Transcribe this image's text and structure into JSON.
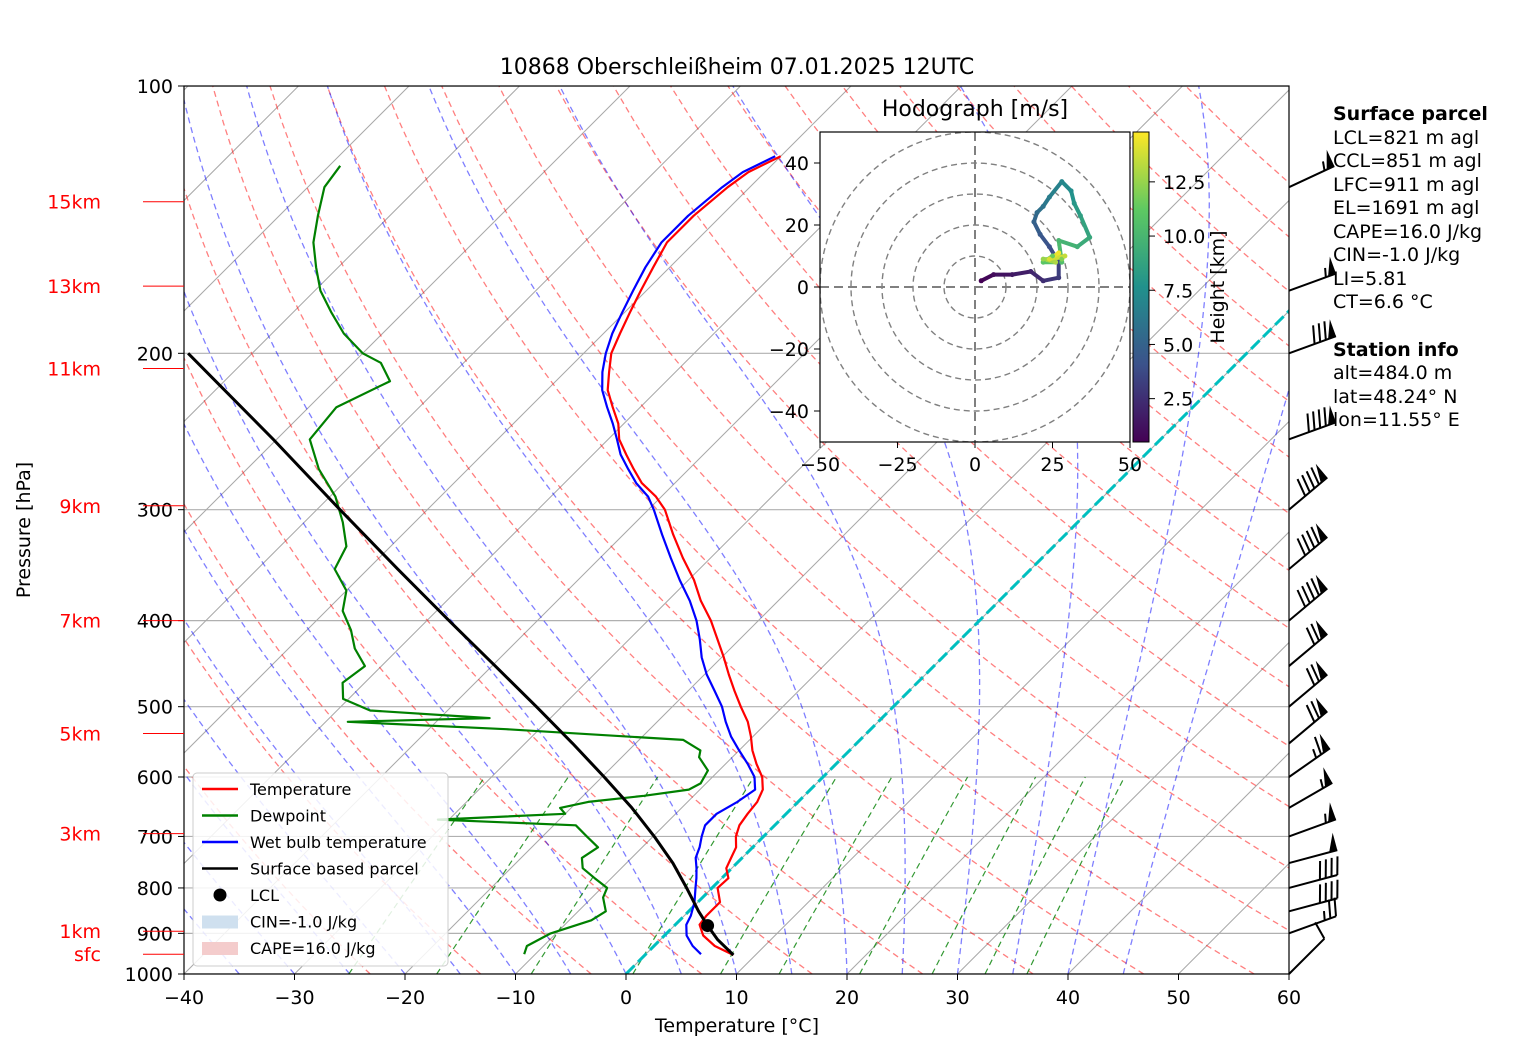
{
  "chart_data": {
    "type": "skew-t",
    "title": "10868 Oberschleißheim 07.01.2025 12UTC",
    "xlabel": "Temperature [°C]",
    "ylabel": "Pressure [hPa]",
    "xlim": [
      -40,
      60
    ],
    "ylim": [
      1000,
      100
    ],
    "x_ticks": [
      "−40",
      "−30",
      "−20",
      "−10",
      "0",
      "10",
      "20",
      "30",
      "40",
      "50",
      "60"
    ],
    "y_ticks": [
      {
        "p": 100,
        "label": "100"
      },
      {
        "p": 200,
        "label": "200"
      },
      {
        "p": 300,
        "label": "300"
      },
      {
        "p": 400,
        "label": "400"
      },
      {
        "p": 500,
        "label": "500"
      },
      {
        "p": 600,
        "label": "600"
      },
      {
        "p": 700,
        "label": "700"
      },
      {
        "p": 800,
        "label": "800"
      },
      {
        "p": 900,
        "label": "900"
      },
      {
        "p": 1000,
        "label": "1000"
      }
    ],
    "height_labels": [
      {
        "label": "15km",
        "p": 135
      },
      {
        "label": "13km",
        "p": 168
      },
      {
        "label": "11km",
        "p": 208
      },
      {
        "label": "9km",
        "p": 297
      },
      {
        "label": "7km",
        "p": 400
      },
      {
        "label": "5km",
        "p": 536
      },
      {
        "label": "3km",
        "p": 695
      },
      {
        "label": "1km",
        "p": 895
      },
      {
        "label": "sfc",
        "p": 950
      }
    ],
    "series": [
      {
        "name": "Temperature",
        "color": "#ff0000",
        "points": [
          [
            952,
            8.0
          ],
          [
            930,
            5.5
          ],
          [
            905,
            3.5
          ],
          [
            880,
            2.2
          ],
          [
            860,
            2.0
          ],
          [
            830,
            2.0
          ],
          [
            800,
            0.5
          ],
          [
            780,
            0.6
          ],
          [
            760,
            -0.5
          ],
          [
            740,
            -1.0
          ],
          [
            720,
            -1.5
          ],
          [
            700,
            -2.5
          ],
          [
            680,
            -3.2
          ],
          [
            660,
            -3.5
          ],
          [
            640,
            -3.7
          ],
          [
            620,
            -4.3
          ],
          [
            600,
            -5.5
          ],
          [
            580,
            -7.2
          ],
          [
            560,
            -8.8
          ],
          [
            540,
            -10.2
          ],
          [
            520,
            -11.8
          ],
          [
            500,
            -13.8
          ],
          [
            480,
            -15.8
          ],
          [
            460,
            -17.8
          ],
          [
            440,
            -19.8
          ],
          [
            420,
            -22.0
          ],
          [
            400,
            -24.3
          ],
          [
            380,
            -27.0
          ],
          [
            360,
            -29.5
          ],
          [
            340,
            -32.5
          ],
          [
            320,
            -35.5
          ],
          [
            300,
            -38.5
          ],
          [
            290,
            -40.5
          ],
          [
            280,
            -43.0
          ],
          [
            270,
            -45.0
          ],
          [
            260,
            -47.0
          ],
          [
            250,
            -49.0
          ],
          [
            240,
            -50.5
          ],
          [
            230,
            -52.5
          ],
          [
            220,
            -54.5
          ],
          [
            210,
            -56.0
          ],
          [
            200,
            -57.5
          ],
          [
            190,
            -58.5
          ],
          [
            180,
            -59.5
          ],
          [
            170,
            -60.5
          ],
          [
            160,
            -61.5
          ],
          [
            150,
            -62.5
          ],
          [
            140,
            -62.5
          ],
          [
            130,
            -62.0
          ],
          [
            125,
            -61.5
          ],
          [
            120,
            -60.0
          ]
        ]
      },
      {
        "name": "Dewpoint",
        "color": "#008000",
        "points": [
          [
            950,
            -11.0
          ],
          [
            930,
            -11.5
          ],
          [
            900,
            -10.5
          ],
          [
            870,
            -8.0
          ],
          [
            850,
            -7.5
          ],
          [
            820,
            -9.0
          ],
          [
            800,
            -9.5
          ],
          [
            780,
            -11.5
          ],
          [
            760,
            -13.5
          ],
          [
            740,
            -14.5
          ],
          [
            720,
            -14.0
          ],
          [
            700,
            -16.0
          ],
          [
            680,
            -18.0
          ],
          [
            670,
            -31.0
          ],
          [
            660,
            -20.0
          ],
          [
            650,
            -21.0
          ],
          [
            640,
            -19.0
          ],
          [
            630,
            -14.5
          ],
          [
            620,
            -11.0
          ],
          [
            610,
            -10.5
          ],
          [
            590,
            -11.0
          ],
          [
            570,
            -13.0
          ],
          [
            560,
            -13.5
          ],
          [
            545,
            -16.0
          ],
          [
            530,
            -33.0
          ],
          [
            520,
            -48.0
          ],
          [
            515,
            -35.5
          ],
          [
            505,
            -47.0
          ],
          [
            490,
            -50.5
          ],
          [
            470,
            -52.0
          ],
          [
            450,
            -51.5
          ],
          [
            430,
            -54.0
          ],
          [
            410,
            -56.0
          ],
          [
            390,
            -58.5
          ],
          [
            370,
            -60.0
          ],
          [
            350,
            -63.0
          ],
          [
            330,
            -64.0
          ],
          [
            310,
            -66.5
          ],
          [
            290,
            -69.5
          ],
          [
            270,
            -73.5
          ],
          [
            250,
            -77.0
          ],
          [
            230,
            -77.5
          ],
          [
            215,
            -75.0
          ],
          [
            205,
            -77.5
          ],
          [
            200,
            -80.0
          ],
          [
            190,
            -83.5
          ],
          [
            180,
            -86.5
          ],
          [
            170,
            -89.5
          ],
          [
            160,
            -92.0
          ],
          [
            150,
            -94.5
          ],
          [
            140,
            -96.5
          ],
          [
            130,
            -98.5
          ],
          [
            123,
            -99.0
          ]
        ]
      },
      {
        "name": "Wet bulb temperature",
        "color": "#0000ff",
        "points": [
          [
            950,
            5.0
          ],
          [
            930,
            3.5
          ],
          [
            905,
            2.0
          ],
          [
            880,
            1.0
          ],
          [
            860,
            0.6
          ],
          [
            830,
            -0.3
          ],
          [
            800,
            -1.5
          ],
          [
            780,
            -2.3
          ],
          [
            760,
            -3.2
          ],
          [
            740,
            -4.2
          ],
          [
            720,
            -4.8
          ],
          [
            700,
            -5.6
          ],
          [
            680,
            -6.3
          ],
          [
            660,
            -6.3
          ],
          [
            640,
            -5.5
          ],
          [
            620,
            -5.0
          ],
          [
            600,
            -6.2
          ],
          [
            580,
            -8.0
          ],
          [
            560,
            -10.0
          ],
          [
            540,
            -12.0
          ],
          [
            520,
            -13.8
          ],
          [
            500,
            -15.5
          ],
          [
            480,
            -17.6
          ],
          [
            460,
            -19.8
          ],
          [
            440,
            -21.8
          ],
          [
            420,
            -23.6
          ],
          [
            400,
            -25.6
          ],
          [
            380,
            -28.0
          ],
          [
            360,
            -30.8
          ],
          [
            340,
            -33.6
          ],
          [
            320,
            -36.5
          ],
          [
            300,
            -39.5
          ],
          [
            290,
            -41.2
          ],
          [
            280,
            -43.5
          ],
          [
            270,
            -45.5
          ],
          [
            260,
            -47.5
          ],
          [
            250,
            -49.2
          ],
          [
            240,
            -51.0
          ],
          [
            230,
            -53.0
          ],
          [
            220,
            -55.0
          ],
          [
            210,
            -56.6
          ],
          [
            200,
            -58.0
          ],
          [
            190,
            -59.2
          ],
          [
            180,
            -60.2
          ],
          [
            170,
            -61.2
          ],
          [
            160,
            -62.2
          ],
          [
            150,
            -63.0
          ],
          [
            140,
            -63.0
          ],
          [
            130,
            -62.5
          ],
          [
            125,
            -62.0
          ],
          [
            120,
            -60.5
          ]
        ]
      },
      {
        "name": "Surface based parcel",
        "color": "#000000",
        "points": [
          [
            952,
            8.0
          ],
          [
            915,
            5.2
          ],
          [
            882,
            3.0
          ],
          [
            850,
            0.9
          ],
          [
            800,
            -2.3
          ],
          [
            750,
            -5.8
          ],
          [
            700,
            -9.9
          ],
          [
            650,
            -14.5
          ],
          [
            600,
            -19.8
          ],
          [
            550,
            -25.7
          ],
          [
            500,
            -32.3
          ],
          [
            450,
            -39.7
          ],
          [
            400,
            -48.0
          ],
          [
            350,
            -57.3
          ],
          [
            300,
            -67.9
          ],
          [
            250,
            -80.3
          ],
          [
            200,
            -95.8
          ]
        ]
      }
    ],
    "lcl": {
      "p": 882,
      "t": 3.0,
      "label": "LCL"
    },
    "cin_label": "CIN=-1.0 J/kg",
    "cape_label": "CAPE=16.0 J/kg",
    "legend_position": "lower-left",
    "wind_barbs": [
      {
        "p": 1000,
        "speed_kt": 10,
        "dir_deg": 225
      },
      {
        "p": 900,
        "speed_kt": 25,
        "dir_deg": 250
      },
      {
        "p": 850,
        "speed_kt": 40,
        "dir_deg": 255
      },
      {
        "p": 800,
        "speed_kt": 40,
        "dir_deg": 255
      },
      {
        "p": 750,
        "speed_kt": 50,
        "dir_deg": 255
      },
      {
        "p": 700,
        "speed_kt": 55,
        "dir_deg": 250
      },
      {
        "p": 650,
        "speed_kt": 55,
        "dir_deg": 240
      },
      {
        "p": 600,
        "speed_kt": 65,
        "dir_deg": 235
      },
      {
        "p": 550,
        "speed_kt": 70,
        "dir_deg": 230
      },
      {
        "p": 500,
        "speed_kt": 70,
        "dir_deg": 230
      },
      {
        "p": 450,
        "speed_kt": 70,
        "dir_deg": 230
      },
      {
        "p": 400,
        "speed_kt": 90,
        "dir_deg": 230
      },
      {
        "p": 350,
        "speed_kt": 90,
        "dir_deg": 230
      },
      {
        "p": 300,
        "speed_kt": 90,
        "dir_deg": 230
      },
      {
        "p": 250,
        "speed_kt": 90,
        "dir_deg": 250
      },
      {
        "p": 200,
        "speed_kt": 80,
        "dir_deg": 250
      },
      {
        "p": 170,
        "speed_kt": 55,
        "dir_deg": 250
      },
      {
        "p": 130,
        "speed_kt": 55,
        "dir_deg": 245
      }
    ],
    "hodograph": {
      "title": "Hodograph [m/s]",
      "xlim": [
        -50,
        50
      ],
      "ylim": [
        -50,
        50
      ],
      "ticks": [
        -50,
        -25,
        0,
        25,
        50
      ],
      "yticks": [
        -40,
        -20,
        0,
        20,
        40
      ],
      "rings": [
        10,
        20,
        30,
        40,
        50
      ],
      "colorbar_label": "Height [km]",
      "colorbar_ticks": [
        "2.5",
        "5.0",
        "7.5",
        "10.0",
        "12.5"
      ],
      "colorbar_range": [
        0.5,
        14.8
      ],
      "colormap_stops": [
        "#440154",
        "#3b528b",
        "#21918c",
        "#5ec962",
        "#fde725"
      ],
      "points": [
        {
          "u": 2,
          "v": 2,
          "h": 0.5
        },
        {
          "u": 6,
          "v": 4,
          "h": 1.0
        },
        {
          "u": 12,
          "v": 4,
          "h": 1.5
        },
        {
          "u": 18,
          "v": 5,
          "h": 2.0
        },
        {
          "u": 22,
          "v": 2,
          "h": 2.5
        },
        {
          "u": 27,
          "v": 3,
          "h": 3.0
        },
        {
          "u": 27,
          "v": 8,
          "h": 3.5
        },
        {
          "u": 24,
          "v": 13,
          "h": 4.0
        },
        {
          "u": 21,
          "v": 17,
          "h": 4.5
        },
        {
          "u": 19,
          "v": 21,
          "h": 5.0
        },
        {
          "u": 20,
          "v": 24,
          "h": 5.5
        },
        {
          "u": 22,
          "v": 26,
          "h": 6.0
        },
        {
          "u": 24,
          "v": 29,
          "h": 6.5
        },
        {
          "u": 28,
          "v": 34,
          "h": 7.0
        },
        {
          "u": 31,
          "v": 31,
          "h": 7.5
        },
        {
          "u": 32,
          "v": 27,
          "h": 8.0
        },
        {
          "u": 34,
          "v": 23,
          "h": 8.5
        },
        {
          "u": 37,
          "v": 16,
          "h": 9.0
        },
        {
          "u": 33,
          "v": 13,
          "h": 9.5
        },
        {
          "u": 27,
          "v": 15,
          "h": 10.0
        },
        {
          "u": 28,
          "v": 8,
          "h": 10.5
        },
        {
          "u": 22,
          "v": 8,
          "h": 11.0
        },
        {
          "u": 25,
          "v": 10,
          "h": 11.5
        },
        {
          "u": 28,
          "v": 9,
          "h": 12.0
        },
        {
          "u": 22,
          "v": 9,
          "h": 12.5
        },
        {
          "u": 26,
          "v": 8,
          "h": 13.0
        },
        {
          "u": 29,
          "v": 10,
          "h": 13.5
        },
        {
          "u": 24,
          "v": 9,
          "h": 14.0
        },
        {
          "u": 27,
          "v": 11,
          "h": 14.5
        }
      ]
    },
    "legend": [
      {
        "label": "Temperature",
        "kind": "line",
        "color": "#ff0000"
      },
      {
        "label": "Dewpoint",
        "kind": "line",
        "color": "#008000"
      },
      {
        "label": "Wet bulb temperature",
        "kind": "line",
        "color": "#0000ff"
      },
      {
        "label": "Surface based parcel",
        "kind": "line",
        "color": "#000000"
      },
      {
        "label": "LCL",
        "kind": "dot",
        "color": "#000000"
      },
      {
        "label": "CIN=-1.0 J/kg",
        "kind": "patch",
        "color": "#cfe0ef"
      },
      {
        "label": "CAPE=16.0 J/kg",
        "kind": "patch",
        "color": "#f4cccc"
      }
    ]
  },
  "side_panel": {
    "surface_title": "Surface parcel",
    "surface_lines": [
      "LCL=821 m agl",
      "CCL=851 m agl",
      "LFC=911 m agl",
      "EL=1691 m agl",
      "CAPE=16.0 J/kg",
      "CIN=-1.0 J/kg",
      "LI=5.81",
      "CT=6.6 °C"
    ],
    "station_title": "Station info",
    "station_lines": [
      "alt=484.0 m",
      "lat=48.24° N",
      "lon=11.55° E"
    ]
  }
}
